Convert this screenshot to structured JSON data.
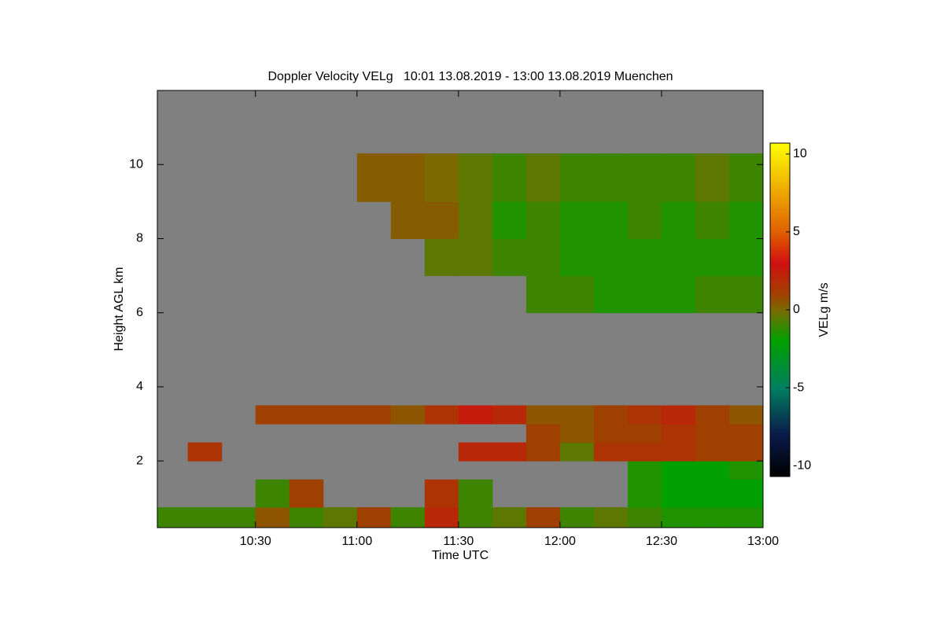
{
  "chart_data": {
    "type": "heatmap",
    "title": "Doppler Velocity VELg   10:01 13.08.2019 - 13:00 13.08.2019 Muenchen",
    "x_label": "Time UTC",
    "y_label": "Height AGL km",
    "colorbar_label": "VELg m/s",
    "background_color": "#808080",
    "xlim": [
      10.0167,
      13.0
    ],
    "xticks": [
      {
        "value": 10.5,
        "label": "10:30"
      },
      {
        "value": 11,
        "label": "11:00"
      },
      {
        "value": 11.5,
        "label": "11:30"
      },
      {
        "value": 12,
        "label": "12:00"
      },
      {
        "value": 12.5,
        "label": "12:30"
      },
      {
        "value": 13,
        "label": "13:00"
      }
    ],
    "ylim": [
      0.2,
      12
    ],
    "yticks": [
      2,
      4,
      6,
      8,
      10
    ],
    "clim": [
      -10.7,
      10.7
    ],
    "cticks": [
      10,
      5,
      0,
      -5,
      -10
    ],
    "colorscale": [
      [
        -10.7,
        "#000000"
      ],
      [
        -8,
        "#0a1a4a"
      ],
      [
        -5,
        "#008060"
      ],
      [
        -2,
        "#00a000"
      ],
      [
        0,
        "#7a6a00"
      ],
      [
        1,
        "#a04000"
      ],
      [
        3,
        "#d01010"
      ],
      [
        5,
        "#e06000"
      ],
      [
        10.7,
        "#ffff00"
      ]
    ],
    "x_edges": [
      10.0167,
      10.1667,
      10.3333,
      10.5,
      10.6667,
      10.8333,
      11,
      11.1667,
      11.3333,
      11.5,
      11.6667,
      11.8333,
      12,
      12.1667,
      12.3333,
      12.5,
      12.6667,
      12.8333,
      13
    ],
    "y_edges": [
      0.2,
      0.75,
      1.5,
      2,
      2.5,
      3,
      3.5,
      6,
      7,
      8,
      9,
      10.3,
      12
    ],
    "z": [
      [
        -1,
        -1,
        -1,
        0.5,
        -1,
        -0.5,
        1,
        -1,
        2,
        -1,
        -0.5,
        1,
        -1,
        -0.5,
        -1,
        -1.5,
        -1.5,
        -1.5
      ],
      [
        null,
        null,
        null,
        -1,
        1,
        null,
        null,
        null,
        1.5,
        -1,
        null,
        null,
        null,
        null,
        -1.5,
        -2,
        -2,
        -2
      ],
      [
        null,
        null,
        null,
        null,
        null,
        null,
        null,
        null,
        null,
        null,
        null,
        null,
        null,
        null,
        -1.5,
        -2,
        -2,
        -1.5
      ],
      [
        null,
        1.5,
        null,
        null,
        null,
        null,
        null,
        null,
        null,
        2,
        2,
        1,
        -0.5,
        1.5,
        1.5,
        1.5,
        1,
        1
      ],
      [
        null,
        null,
        null,
        null,
        null,
        null,
        null,
        null,
        null,
        null,
        null,
        1,
        0.5,
        1,
        1,
        1.5,
        1,
        1
      ],
      [
        null,
        null,
        null,
        1,
        1,
        1,
        1,
        0.5,
        1.5,
        2.5,
        2,
        0.5,
        0.5,
        1,
        1.5,
        2,
        1,
        0.5
      ],
      [
        null,
        null,
        null,
        null,
        null,
        null,
        null,
        null,
        null,
        null,
        null,
        null,
        null,
        null,
        null,
        null,
        null,
        null
      ],
      [
        null,
        null,
        null,
        null,
        null,
        null,
        null,
        null,
        null,
        null,
        null,
        -1,
        -1,
        -1.5,
        -1.5,
        -1.5,
        -1,
        -1
      ],
      [
        null,
        null,
        null,
        null,
        null,
        null,
        null,
        null,
        -0.5,
        -0.5,
        -1,
        -1,
        -1.5,
        -1.5,
        -1.5,
        -1.5,
        -1.5,
        -1.5
      ],
      [
        null,
        null,
        null,
        null,
        null,
        null,
        null,
        0.3,
        0.3,
        -0.5,
        -1.5,
        -1,
        -1.5,
        -1.5,
        -1,
        -1.5,
        -1,
        -1.5
      ],
      [
        null,
        null,
        null,
        null,
        null,
        null,
        0.3,
        0.3,
        0,
        -0.5,
        -1,
        -0.5,
        -1,
        -1,
        -1,
        -1,
        -0.5,
        -1
      ],
      [
        null,
        null,
        null,
        null,
        null,
        null,
        null,
        null,
        null,
        null,
        null,
        null,
        null,
        null,
        null,
        null,
        null,
        null
      ]
    ]
  }
}
